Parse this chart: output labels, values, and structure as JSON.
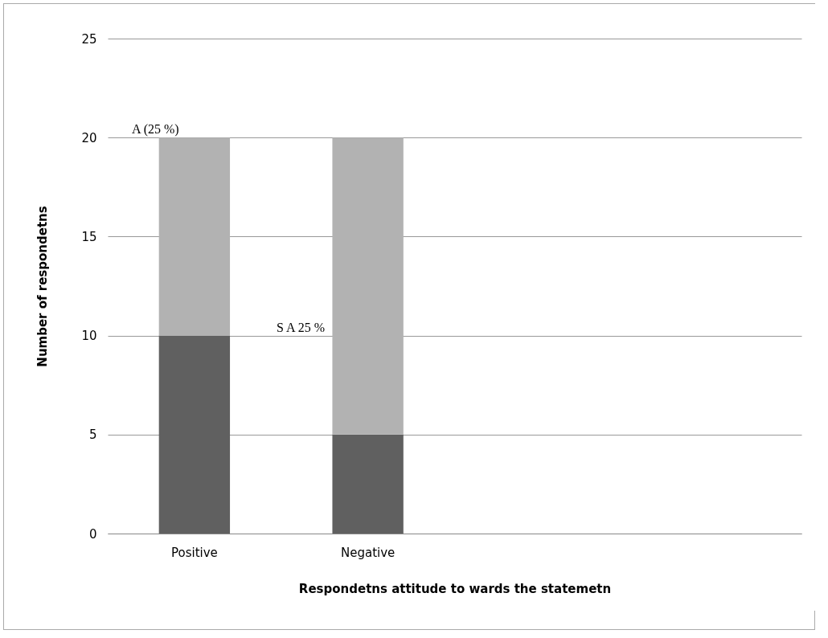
{
  "chart_data": {
    "type": "bar",
    "stacked": true,
    "xlabel": "Respondetns attitude to wards the statemetn",
    "ylabel": "Number of respondetns",
    "categories": [
      "Positive",
      "Negative",
      null,
      null
    ],
    "series": [
      {
        "color": "#606060",
        "values": [
          10,
          5,
          null,
          null
        ]
      },
      {
        "color": "#b2b2b2",
        "values": [
          10,
          15,
          null,
          null
        ]
      }
    ],
    "ylim": [
      0,
      25
    ],
    "yticks": [
      0,
      5,
      10,
      15,
      20,
      25
    ],
    "grid": "y",
    "annotations": [
      "A (25 %)",
      "S A 25 %"
    ]
  }
}
